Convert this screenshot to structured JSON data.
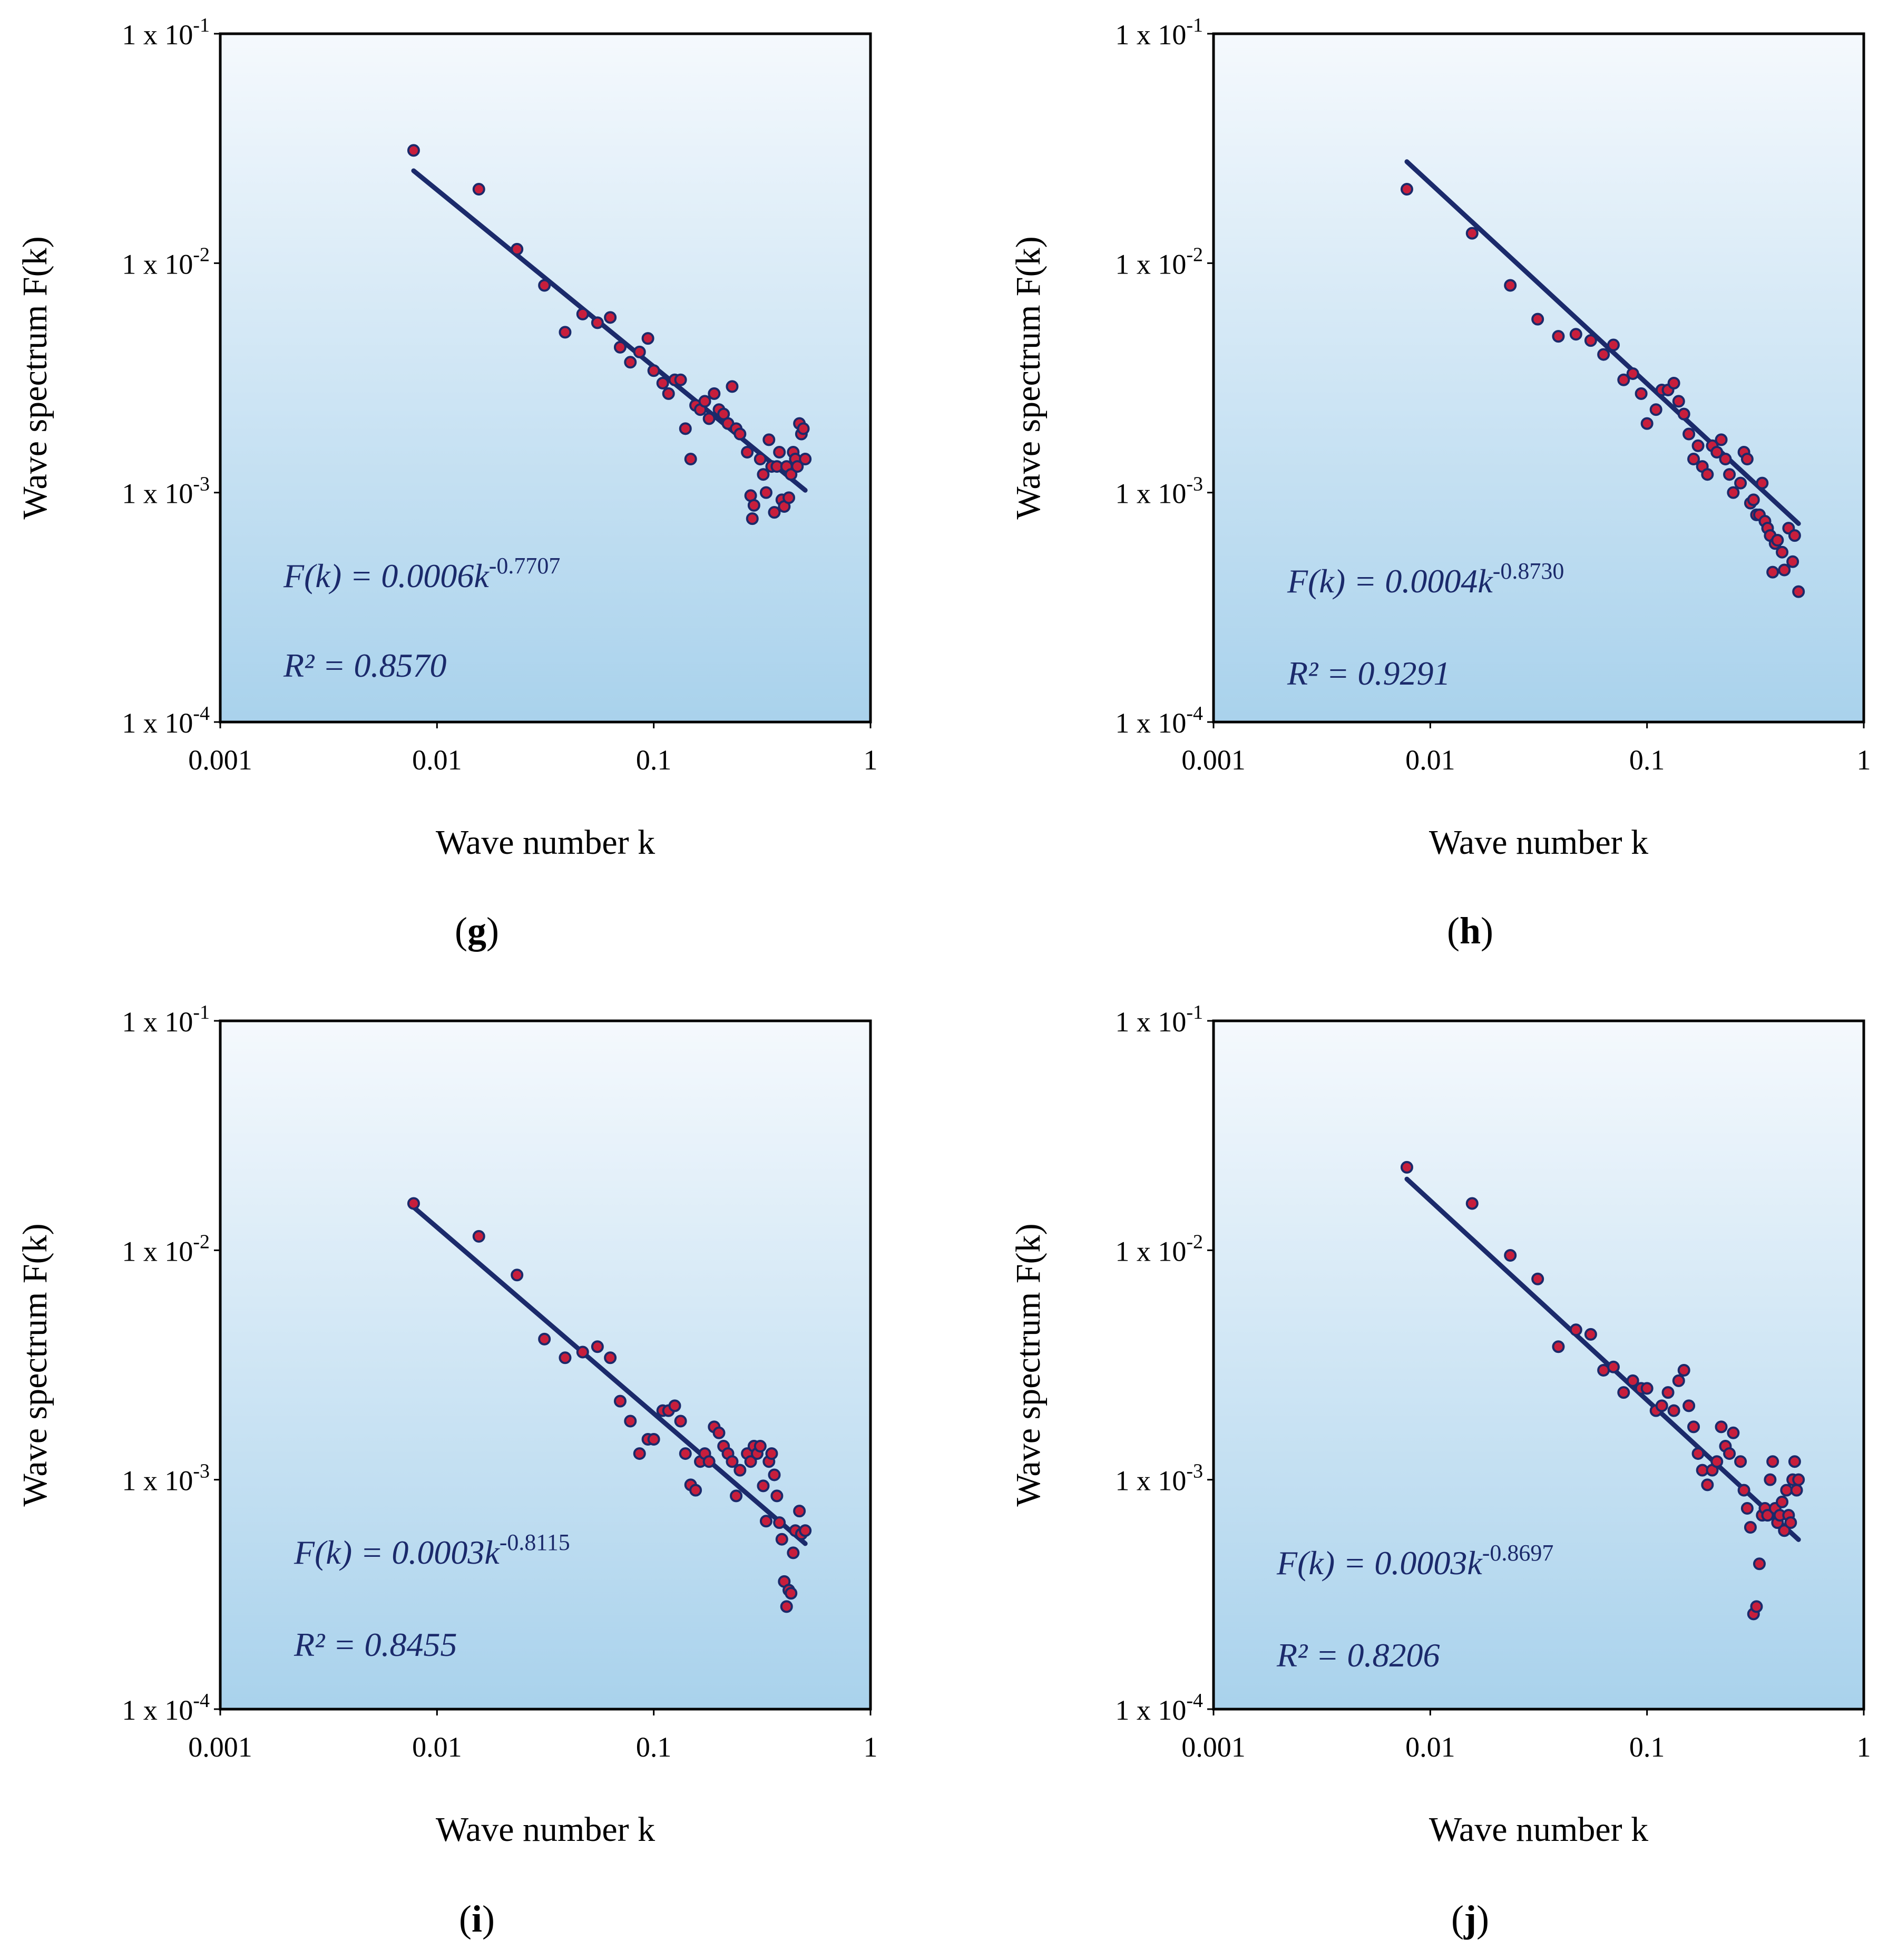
{
  "chart_data": [
    {
      "panel_label": "g",
      "type": "scatter",
      "xscale": "log",
      "yscale": "log",
      "xlim": [
        0.001,
        1
      ],
      "ylim": [
        0.0001,
        0.1
      ],
      "xlabel": "Wave number k",
      "ylabel": "Wave spectrum F(k)",
      "xticks": [
        {
          "value": 0.001,
          "label": "0.001"
        },
        {
          "value": 0.01,
          "label": "0.01"
        },
        {
          "value": 0.1,
          "label": "0.1"
        },
        {
          "value": 1,
          "label": "1"
        }
      ],
      "yticks": [
        {
          "value": 0.0001,
          "mantissa": "1 x 10",
          "exponent": "-4"
        },
        {
          "value": 0.001,
          "mantissa": "1 x 10",
          "exponent": "-3"
        },
        {
          "value": 0.01,
          "mantissa": "1 x 10",
          "exponent": "-2"
        },
        {
          "value": 0.1,
          "mantissa": "1 x 10",
          "exponent": "-1"
        }
      ],
      "fit": {
        "coef": 0.0006,
        "exponent": -0.7707,
        "x_range": [
          0.0078,
          0.5
        ],
        "equation_prefix": "F(k) = 0.0006k",
        "equation_exponent": "-0.7707",
        "r2_label": "R² = 0.8570"
      },
      "points": [
        [
          0.0078,
          0.031
        ],
        [
          0.0156,
          0.021
        ],
        [
          0.0234,
          0.0115
        ],
        [
          0.0313,
          0.008
        ],
        [
          0.039,
          0.005
        ],
        [
          0.047,
          0.006
        ],
        [
          0.055,
          0.0055
        ],
        [
          0.063,
          0.0058
        ],
        [
          0.07,
          0.0043
        ],
        [
          0.078,
          0.0037
        ],
        [
          0.086,
          0.0041
        ],
        [
          0.094,
          0.0047
        ],
        [
          0.1,
          0.0034
        ],
        [
          0.11,
          0.003
        ],
        [
          0.117,
          0.0027
        ],
        [
          0.125,
          0.0031
        ],
        [
          0.133,
          0.0031
        ],
        [
          0.14,
          0.0019
        ],
        [
          0.148,
          0.0014
        ],
        [
          0.156,
          0.0024
        ],
        [
          0.164,
          0.0023
        ],
        [
          0.172,
          0.0025
        ],
        [
          0.18,
          0.0021
        ],
        [
          0.19,
          0.0027
        ],
        [
          0.2,
          0.0023
        ],
        [
          0.21,
          0.0022
        ],
        [
          0.22,
          0.002
        ],
        [
          0.23,
          0.0029
        ],
        [
          0.24,
          0.0019
        ],
        [
          0.25,
          0.0018
        ],
        [
          0.27,
          0.0015
        ],
        [
          0.28,
          0.00097
        ],
        [
          0.285,
          0.00077
        ],
        [
          0.29,
          0.00088
        ],
        [
          0.31,
          0.0014
        ],
        [
          0.32,
          0.0012
        ],
        [
          0.33,
          0.001
        ],
        [
          0.34,
          0.0017
        ],
        [
          0.35,
          0.0013
        ],
        [
          0.36,
          0.00082
        ],
        [
          0.37,
          0.0013
        ],
        [
          0.38,
          0.0015
        ],
        [
          0.39,
          0.00093
        ],
        [
          0.4,
          0.00087
        ],
        [
          0.41,
          0.0013
        ],
        [
          0.42,
          0.00095
        ],
        [
          0.43,
          0.0012
        ],
        [
          0.44,
          0.0015
        ],
        [
          0.45,
          0.0014
        ],
        [
          0.46,
          0.0013
        ],
        [
          0.47,
          0.002
        ],
        [
          0.48,
          0.0018
        ],
        [
          0.49,
          0.0019
        ],
        [
          0.5,
          0.0014
        ]
      ]
    },
    {
      "panel_label": "h",
      "type": "scatter",
      "xscale": "log",
      "yscale": "log",
      "xlim": [
        0.001,
        1
      ],
      "ylim": [
        0.0001,
        0.1
      ],
      "xlabel": "Wave number k",
      "ylabel": "Wave spectrum F(k)",
      "xticks": [
        {
          "value": 0.001,
          "label": "0.001"
        },
        {
          "value": 0.01,
          "label": "0.01"
        },
        {
          "value": 0.1,
          "label": "0.1"
        },
        {
          "value": 1,
          "label": "1"
        }
      ],
      "yticks": [
        {
          "value": 0.0001,
          "mantissa": "1 x 10",
          "exponent": "-4"
        },
        {
          "value": 0.001,
          "mantissa": "1 x 10",
          "exponent": "-3"
        },
        {
          "value": 0.01,
          "mantissa": "1 x 10",
          "exponent": "-2"
        },
        {
          "value": 0.1,
          "mantissa": "1 x 10",
          "exponent": "-1"
        }
      ],
      "fit": {
        "coef": 0.0004,
        "exponent": -0.873,
        "x_range": [
          0.0078,
          0.5
        ],
        "equation_prefix": "F(k) = 0.0004k",
        "equation_exponent": "-0.8730",
        "r2_label": "R² = 0.9291"
      },
      "points": [
        [
          0.0078,
          0.021
        ],
        [
          0.0156,
          0.0135
        ],
        [
          0.0234,
          0.008
        ],
        [
          0.0313,
          0.0057
        ],
        [
          0.039,
          0.0048
        ],
        [
          0.047,
          0.0049
        ],
        [
          0.055,
          0.0046
        ],
        [
          0.063,
          0.004
        ],
        [
          0.07,
          0.0044
        ],
        [
          0.078,
          0.0031
        ],
        [
          0.086,
          0.0033
        ],
        [
          0.094,
          0.0027
        ],
        [
          0.1,
          0.002
        ],
        [
          0.11,
          0.0023
        ],
        [
          0.117,
          0.0028
        ],
        [
          0.125,
          0.0028
        ],
        [
          0.133,
          0.003
        ],
        [
          0.14,
          0.0025
        ],
        [
          0.148,
          0.0022
        ],
        [
          0.156,
          0.0018
        ],
        [
          0.164,
          0.0014
        ],
        [
          0.172,
          0.0016
        ],
        [
          0.18,
          0.0013
        ],
        [
          0.19,
          0.0012
        ],
        [
          0.2,
          0.0016
        ],
        [
          0.21,
          0.0015
        ],
        [
          0.22,
          0.0017
        ],
        [
          0.23,
          0.0014
        ],
        [
          0.24,
          0.0012
        ],
        [
          0.25,
          0.001
        ],
        [
          0.27,
          0.0011
        ],
        [
          0.28,
          0.0015
        ],
        [
          0.29,
          0.0014
        ],
        [
          0.3,
          0.0009
        ],
        [
          0.31,
          0.00093
        ],
        [
          0.32,
          0.0008
        ],
        [
          0.33,
          0.0008
        ],
        [
          0.34,
          0.0011
        ],
        [
          0.35,
          0.00075
        ],
        [
          0.36,
          0.0007
        ],
        [
          0.37,
          0.00065
        ],
        [
          0.38,
          0.00045
        ],
        [
          0.39,
          0.0006
        ],
        [
          0.4,
          0.00062
        ],
        [
          0.42,
          0.00055
        ],
        [
          0.43,
          0.00046
        ],
        [
          0.45,
          0.0007
        ],
        [
          0.47,
          0.0005
        ],
        [
          0.48,
          0.00065
        ],
        [
          0.5,
          0.00037
        ]
      ]
    },
    {
      "panel_label": "i",
      "type": "scatter",
      "xscale": "log",
      "yscale": "log",
      "xlim": [
        0.001,
        1
      ],
      "ylim": [
        0.0001,
        0.1
      ],
      "xlabel": "Wave number k",
      "ylabel": "Wave spectrum F(k)",
      "xticks": [
        {
          "value": 0.001,
          "label": "0.001"
        },
        {
          "value": 0.01,
          "label": "0.01"
        },
        {
          "value": 0.1,
          "label": "0.1"
        },
        {
          "value": 1,
          "label": "1"
        }
      ],
      "yticks": [
        {
          "value": 0.0001,
          "mantissa": "1 x 10",
          "exponent": "-4"
        },
        {
          "value": 0.001,
          "mantissa": "1 x 10",
          "exponent": "-3"
        },
        {
          "value": 0.01,
          "mantissa": "1 x 10",
          "exponent": "-2"
        },
        {
          "value": 0.1,
          "mantissa": "1 x 10",
          "exponent": "-1"
        }
      ],
      "fit": {
        "coef": 0.0003,
        "exponent": -0.8115,
        "x_range": [
          0.0078,
          0.5
        ],
        "equation_prefix": "F(k) = 0.0003k",
        "equation_exponent": "-0.8115",
        "r2_label": "R² = 0.8455"
      },
      "points": [
        [
          0.0078,
          0.016
        ],
        [
          0.0156,
          0.0115
        ],
        [
          0.0234,
          0.0078
        ],
        [
          0.0313,
          0.0041
        ],
        [
          0.039,
          0.0034
        ],
        [
          0.047,
          0.0036
        ],
        [
          0.055,
          0.0038
        ],
        [
          0.063,
          0.0034
        ],
        [
          0.07,
          0.0022
        ],
        [
          0.078,
          0.0018
        ],
        [
          0.086,
          0.0013
        ],
        [
          0.094,
          0.0015
        ],
        [
          0.1,
          0.0015
        ],
        [
          0.11,
          0.002
        ],
        [
          0.117,
          0.002
        ],
        [
          0.125,
          0.0021
        ],
        [
          0.133,
          0.0018
        ],
        [
          0.14,
          0.0013
        ],
        [
          0.148,
          0.00095
        ],
        [
          0.156,
          0.0009
        ],
        [
          0.164,
          0.0012
        ],
        [
          0.172,
          0.0013
        ],
        [
          0.18,
          0.0012
        ],
        [
          0.19,
          0.0017
        ],
        [
          0.2,
          0.0016
        ],
        [
          0.21,
          0.0014
        ],
        [
          0.22,
          0.0013
        ],
        [
          0.23,
          0.0012
        ],
        [
          0.24,
          0.00085
        ],
        [
          0.25,
          0.0011
        ],
        [
          0.27,
          0.0013
        ],
        [
          0.28,
          0.0012
        ],
        [
          0.29,
          0.0014
        ],
        [
          0.3,
          0.0013
        ],
        [
          0.31,
          0.0014
        ],
        [
          0.32,
          0.00094
        ],
        [
          0.33,
          0.00066
        ],
        [
          0.34,
          0.0012
        ],
        [
          0.35,
          0.0013
        ],
        [
          0.36,
          0.00105
        ],
        [
          0.37,
          0.00085
        ],
        [
          0.38,
          0.00065
        ],
        [
          0.39,
          0.00055
        ],
        [
          0.4,
          0.00036
        ],
        [
          0.41,
          0.00028
        ],
        [
          0.42,
          0.00033
        ],
        [
          0.43,
          0.00032
        ],
        [
          0.44,
          0.00048
        ],
        [
          0.45,
          0.0006
        ],
        [
          0.47,
          0.00073
        ],
        [
          0.48,
          0.00058
        ],
        [
          0.5,
          0.0006
        ]
      ]
    },
    {
      "panel_label": "j",
      "type": "scatter",
      "xscale": "log",
      "yscale": "log",
      "xlim": [
        0.001,
        1
      ],
      "ylim": [
        0.0001,
        0.1
      ],
      "xlabel": "Wave number k",
      "ylabel": "Wave spectrum F(k)",
      "xticks": [
        {
          "value": 0.001,
          "label": "0.001"
        },
        {
          "value": 0.01,
          "label": "0.01"
        },
        {
          "value": 0.1,
          "label": "0.1"
        },
        {
          "value": 1,
          "label": "1"
        }
      ],
      "yticks": [
        {
          "value": 0.0001,
          "mantissa": "1 x 10",
          "exponent": "-4"
        },
        {
          "value": 0.001,
          "mantissa": "1 x 10",
          "exponent": "-3"
        },
        {
          "value": 0.01,
          "mantissa": "1 x 10",
          "exponent": "-2"
        },
        {
          "value": 0.1,
          "mantissa": "1 x 10",
          "exponent": "-1"
        }
      ],
      "fit": {
        "coef": 0.0003,
        "exponent": -0.8697,
        "x_range": [
          0.0078,
          0.5
        ],
        "equation_prefix": "F(k) = 0.0003k",
        "equation_exponent": "-0.8697",
        "r2_label": "R² = 0.8206"
      },
      "points": [
        [
          0.0078,
          0.023
        ],
        [
          0.0156,
          0.016
        ],
        [
          0.0234,
          0.0095
        ],
        [
          0.0313,
          0.0075
        ],
        [
          0.039,
          0.0038
        ],
        [
          0.047,
          0.0045
        ],
        [
          0.055,
          0.0043
        ],
        [
          0.063,
          0.003
        ],
        [
          0.07,
          0.0031
        ],
        [
          0.078,
          0.0024
        ],
        [
          0.086,
          0.0027
        ],
        [
          0.094,
          0.0025
        ],
        [
          0.1,
          0.0025
        ],
        [
          0.11,
          0.002
        ],
        [
          0.117,
          0.0021
        ],
        [
          0.125,
          0.0024
        ],
        [
          0.133,
          0.002
        ],
        [
          0.14,
          0.0027
        ],
        [
          0.148,
          0.003
        ],
        [
          0.156,
          0.0021
        ],
        [
          0.164,
          0.0017
        ],
        [
          0.172,
          0.0013
        ],
        [
          0.18,
          0.0011
        ],
        [
          0.19,
          0.00095
        ],
        [
          0.2,
          0.0011
        ],
        [
          0.21,
          0.0012
        ],
        [
          0.22,
          0.0017
        ],
        [
          0.23,
          0.0014
        ],
        [
          0.24,
          0.0013
        ],
        [
          0.25,
          0.0016
        ],
        [
          0.27,
          0.0012
        ],
        [
          0.28,
          0.0009
        ],
        [
          0.29,
          0.00075
        ],
        [
          0.3,
          0.00062
        ],
        [
          0.31,
          0.00026
        ],
        [
          0.32,
          0.00028
        ],
        [
          0.33,
          0.00043
        ],
        [
          0.34,
          0.0007
        ],
        [
          0.35,
          0.00075
        ],
        [
          0.36,
          0.0007
        ],
        [
          0.37,
          0.001
        ],
        [
          0.38,
          0.0012
        ],
        [
          0.39,
          0.00075
        ],
        [
          0.4,
          0.00065
        ],
        [
          0.41,
          0.0007
        ],
        [
          0.42,
          0.0008
        ],
        [
          0.43,
          0.0006
        ],
        [
          0.44,
          0.0009
        ],
        [
          0.45,
          0.0007
        ],
        [
          0.46,
          0.00065
        ],
        [
          0.47,
          0.001
        ],
        [
          0.48,
          0.0012
        ],
        [
          0.49,
          0.0009
        ],
        [
          0.5,
          0.001
        ]
      ]
    }
  ],
  "style": {
    "fit_color": "#1b2a6b",
    "marker_fill": "#c81e3c",
    "marker_edge": "#1b2a6b",
    "text_color": "#1b2a6b",
    "plot_bg_top": "#f5f9fd",
    "plot_bg_bottom": "#a9d2ec"
  }
}
